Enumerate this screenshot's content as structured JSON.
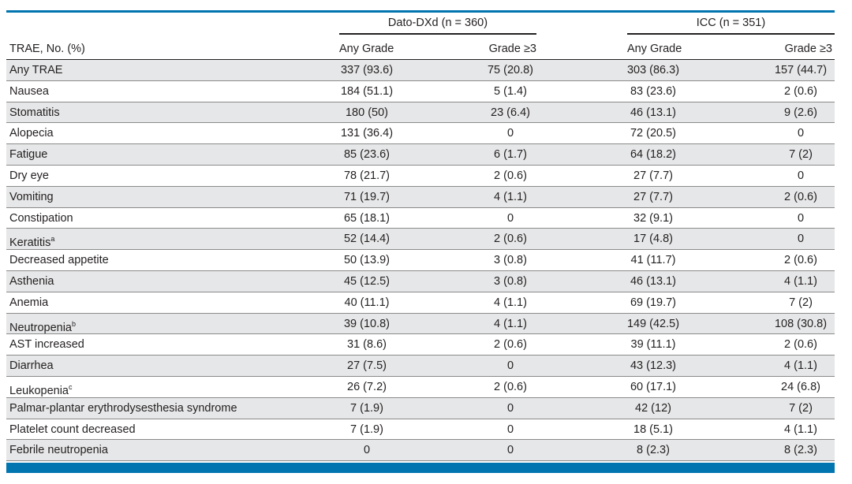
{
  "groups": {
    "dato": "Dato-DXd (n = 360)",
    "icc": "ICC (n = 351)"
  },
  "headers": {
    "label": "TRAE, No. (%)",
    "dato_any": "Any Grade",
    "dato_g3": "Grade ≥3",
    "icc_any": "Any Grade",
    "icc_g3": "Grade ≥3"
  },
  "rows": [
    {
      "label": "Any TRAE",
      "sup": "",
      "dato_any": "337 (93.6)",
      "dato_g3": "75 (20.8)",
      "icc_any": "303 (86.3)",
      "icc_g3": "157 (44.7)"
    },
    {
      "label": "Nausea",
      "sup": "",
      "dato_any": "184 (51.1)",
      "dato_g3": "5 (1.4)",
      "icc_any": "83 (23.6)",
      "icc_g3": "2 (0.6)"
    },
    {
      "label": "Stomatitis",
      "sup": "",
      "dato_any": "180 (50)",
      "dato_g3": "23 (6.4)",
      "icc_any": "46 (13.1)",
      "icc_g3": "9 (2.6)"
    },
    {
      "label": "Alopecia",
      "sup": "",
      "dato_any": "131 (36.4)",
      "dato_g3": "0",
      "icc_any": "72 (20.5)",
      "icc_g3": "0"
    },
    {
      "label": "Fatigue",
      "sup": "",
      "dato_any": "85 (23.6)",
      "dato_g3": "6 (1.7)",
      "icc_any": "64 (18.2)",
      "icc_g3": "7 (2)"
    },
    {
      "label": "Dry eye",
      "sup": "",
      "dato_any": "78 (21.7)",
      "dato_g3": "2 (0.6)",
      "icc_any": "27 (7.7)",
      "icc_g3": "0"
    },
    {
      "label": "Vomiting",
      "sup": "",
      "dato_any": "71 (19.7)",
      "dato_g3": "4 (1.1)",
      "icc_any": "27 (7.7)",
      "icc_g3": "2 (0.6)"
    },
    {
      "label": "Constipation",
      "sup": "",
      "dato_any": "65 (18.1)",
      "dato_g3": "0",
      "icc_any": "32 (9.1)",
      "icc_g3": "0"
    },
    {
      "label": "Keratitis",
      "sup": "a",
      "dato_any": "52 (14.4)",
      "dato_g3": "2 (0.6)",
      "icc_any": "17 (4.8)",
      "icc_g3": "0"
    },
    {
      "label": "Decreased appetite",
      "sup": "",
      "dato_any": "50 (13.9)",
      "dato_g3": "3 (0.8)",
      "icc_any": "41 (11.7)",
      "icc_g3": "2 (0.6)"
    },
    {
      "label": "Asthenia",
      "sup": "",
      "dato_any": "45 (12.5)",
      "dato_g3": "3 (0.8)",
      "icc_any": "46 (13.1)",
      "icc_g3": "4 (1.1)"
    },
    {
      "label": "Anemia",
      "sup": "",
      "dato_any": "40 (11.1)",
      "dato_g3": "4 (1.1)",
      "icc_any": "69 (19.7)",
      "icc_g3": "7 (2)"
    },
    {
      "label": "Neutropenia",
      "sup": "b",
      "dato_any": "39 (10.8)",
      "dato_g3": "4 (1.1)",
      "icc_any": "149 (42.5)",
      "icc_g3": "108 (30.8)"
    },
    {
      "label": "AST increased",
      "sup": "",
      "dato_any": "31 (8.6)",
      "dato_g3": "2 (0.6)",
      "icc_any": "39 (11.1)",
      "icc_g3": "2 (0.6)"
    },
    {
      "label": "Diarrhea",
      "sup": "",
      "dato_any": "27 (7.5)",
      "dato_g3": "0",
      "icc_any": "43 (12.3)",
      "icc_g3": "4 (1.1)"
    },
    {
      "label": "Leukopenia",
      "sup": "c",
      "dato_any": "26 (7.2)",
      "dato_g3": "2 (0.6)",
      "icc_any": "60 (17.1)",
      "icc_g3": "24 (6.8)"
    },
    {
      "label": "Palmar-plantar erythrodysesthesia syndrome",
      "sup": "",
      "dato_any": "7 (1.9)",
      "dato_g3": "0",
      "icc_any": "42 (12)",
      "icc_g3": "7 (2)"
    },
    {
      "label": "Platelet count decreased",
      "sup": "",
      "dato_any": "7 (1.9)",
      "dato_g3": "0",
      "icc_any": "18 (5.1)",
      "icc_g3": "4 (1.1)"
    },
    {
      "label": "Febrile neutropenia",
      "sup": "",
      "dato_any": "0",
      "dato_g3": "0",
      "icc_any": "8 (2.3)",
      "icc_g3": "8 (2.3)"
    }
  ],
  "colors": {
    "accent": "#0075b0",
    "row_shade": "#e6e7e8"
  }
}
